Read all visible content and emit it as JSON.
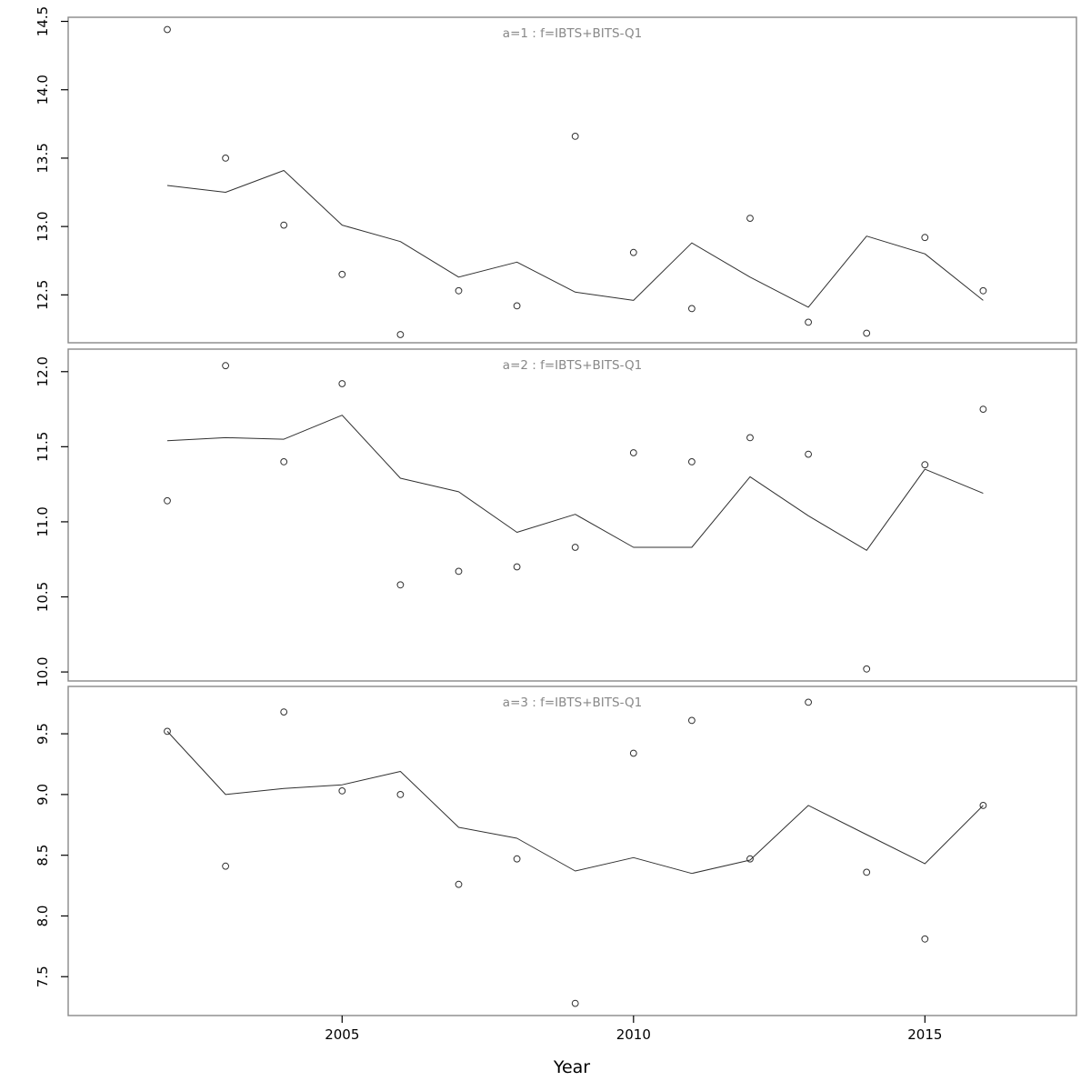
{
  "chart_data": {
    "type": "line",
    "description": "Three stacked panels of yearly observed values (open circles) and fitted line",
    "xlabel": "Year",
    "x": [
      2002,
      2003,
      2004,
      2005,
      2006,
      2007,
      2008,
      2009,
      2010,
      2011,
      2012,
      2013,
      2014,
      2015,
      2016
    ],
    "xlim": [
      2000.3,
      2017.6
    ],
    "x_ticks": [
      2005,
      2010,
      2015
    ],
    "grid": false,
    "marker": "open-circle",
    "legend": "none",
    "colors": {
      "line": "#303030",
      "marker_stroke": "#303030",
      "panel_border": "#888888",
      "panel_title": "#888888",
      "axis_text": "#000000",
      "background": "#ffffff"
    },
    "panels": [
      {
        "label": "a=1  :  f=IBTS+BITS-Q1",
        "ylim": [
          12.15,
          14.53
        ],
        "y_ticks": [
          12.5,
          13.0,
          13.5,
          14.0,
          14.5
        ],
        "series": [
          {
            "name": "observed",
            "style": "points",
            "values": [
              14.44,
              13.5,
              13.01,
              12.65,
              12.21,
              12.53,
              12.42,
              13.66,
              12.81,
              12.4,
              13.06,
              12.3,
              12.22,
              12.92,
              12.53
            ]
          },
          {
            "name": "fitted",
            "style": "line",
            "values": [
              13.3,
              13.25,
              13.41,
              13.01,
              12.89,
              12.63,
              12.74,
              12.52,
              12.46,
              12.88,
              12.63,
              12.41,
              12.93,
              12.8,
              12.46
            ]
          }
        ]
      },
      {
        "label": "a=2  :  f=IBTS+BITS-Q1",
        "ylim": [
          9.94,
          12.15
        ],
        "y_ticks": [
          10.0,
          10.5,
          11.0,
          11.5,
          12.0
        ],
        "series": [
          {
            "name": "observed",
            "style": "points",
            "values": [
              11.14,
              12.04,
              11.4,
              11.92,
              10.58,
              10.67,
              10.7,
              10.83,
              11.46,
              11.4,
              11.56,
              11.45,
              10.02,
              11.38,
              11.75
            ]
          },
          {
            "name": "fitted",
            "style": "line",
            "values": [
              11.54,
              11.56,
              11.55,
              11.71,
              11.29,
              11.2,
              10.93,
              11.05,
              10.83,
              10.83,
              11.3,
              11.04,
              10.81,
              11.35,
              11.19
            ]
          }
        ]
      },
      {
        "label": "a=3  :  f=IBTS+BITS-Q1",
        "ylim": [
          7.18,
          9.89
        ],
        "y_ticks": [
          7.5,
          8.0,
          8.5,
          9.0,
          9.5
        ],
        "series": [
          {
            "name": "observed",
            "style": "points",
            "values": [
              9.52,
              8.41,
              9.68,
              9.03,
              9.0,
              8.26,
              8.47,
              7.28,
              9.34,
              9.61,
              8.47,
              9.76,
              8.36,
              7.81,
              8.91
            ]
          },
          {
            "name": "fitted",
            "style": "line",
            "values": [
              9.52,
              9.0,
              9.05,
              9.08,
              9.19,
              8.73,
              8.64,
              8.37,
              8.48,
              8.35,
              8.46,
              8.91,
              8.67,
              8.43,
              8.91
            ]
          }
        ]
      }
    ]
  }
}
